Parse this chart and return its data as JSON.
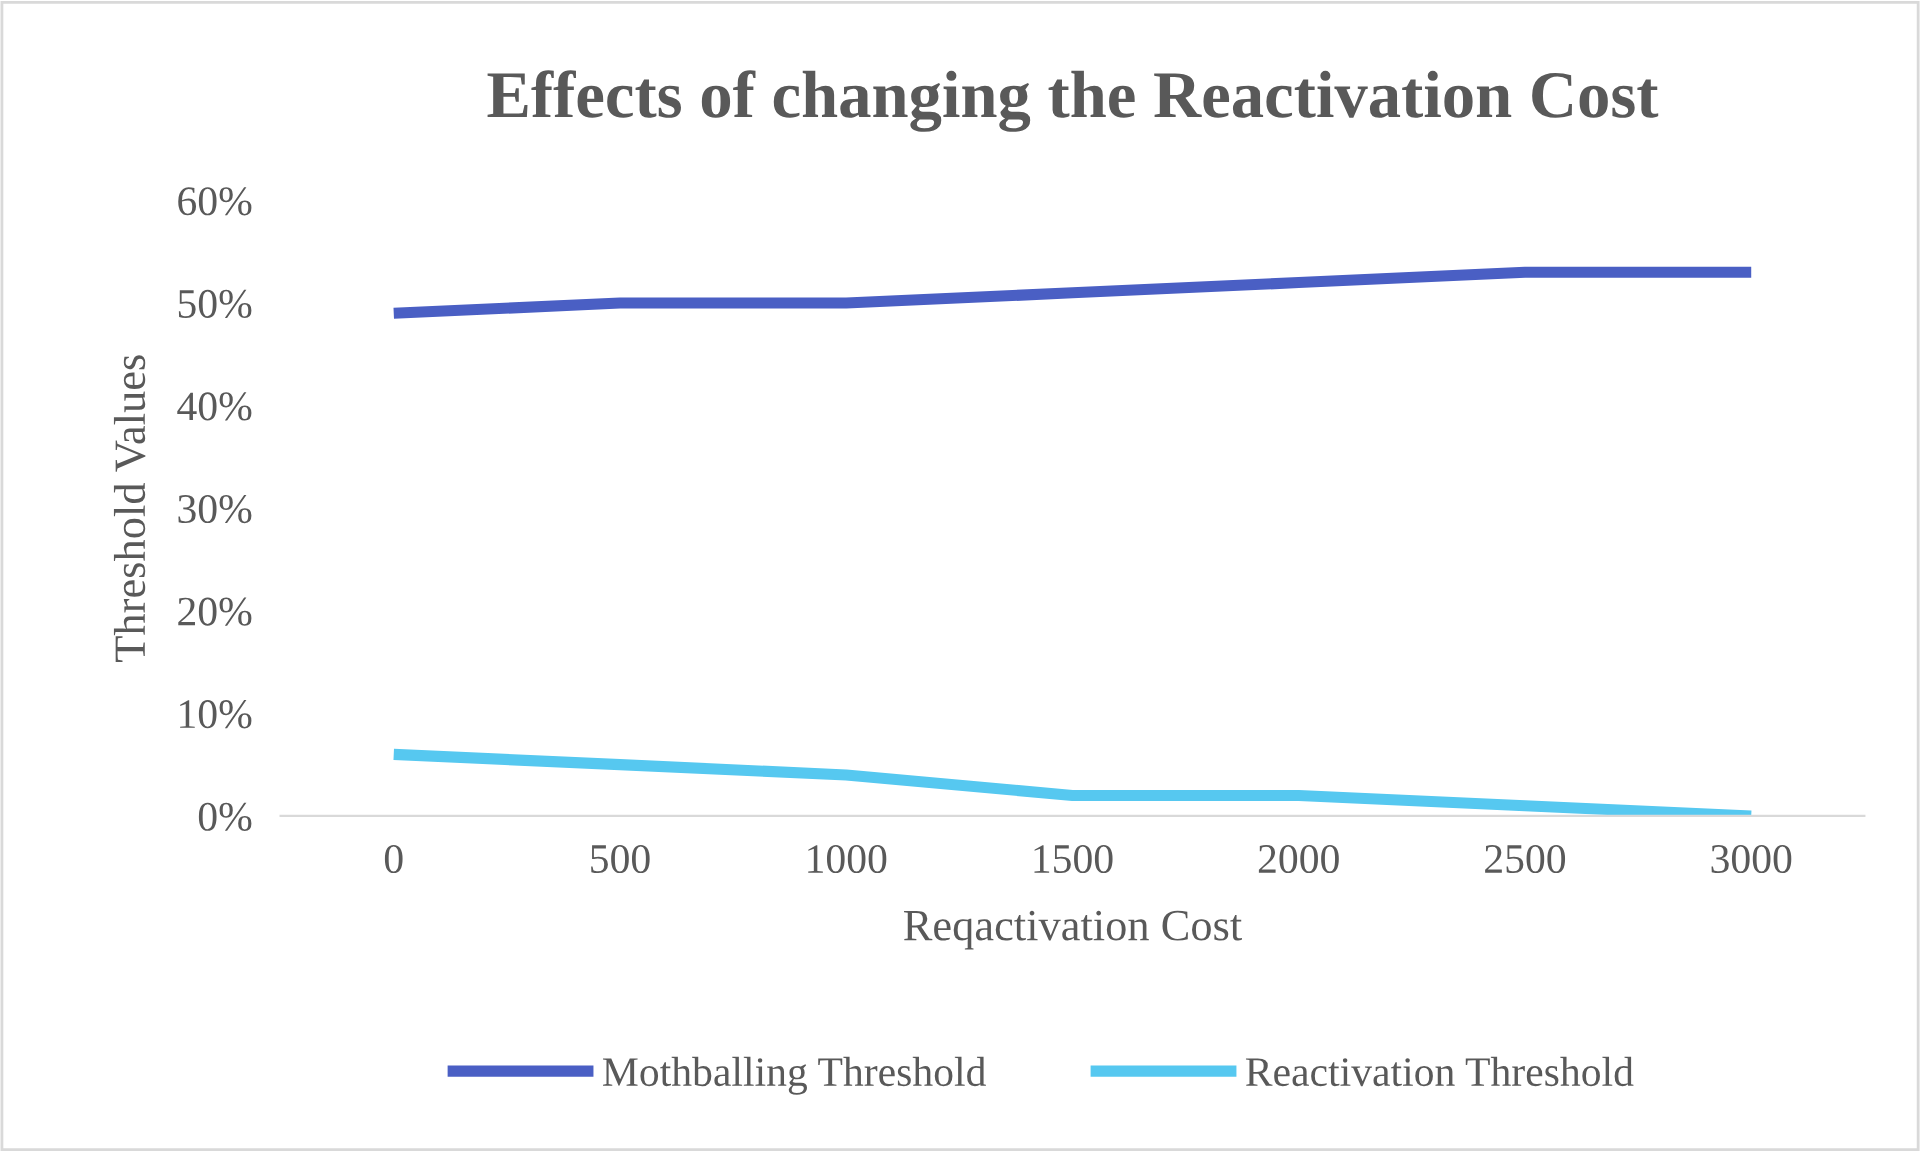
{
  "chart_data": {
    "type": "line",
    "title": "Effects of changing the Reactivation Cost",
    "xlabel": "Reqactivation Cost",
    "ylabel": "Threshold Values",
    "categories": [
      "0",
      "500",
      "1000",
      "1500",
      "2000",
      "2500",
      "3000"
    ],
    "series": [
      {
        "name": "Mothballing Threshold",
        "color": "#4a5fc4",
        "values": [
          49,
          50,
          50,
          51,
          52,
          53,
          53
        ]
      },
      {
        "name": "Reactivation Threshold",
        "color": "#56c8f0",
        "values": [
          6,
          5,
          4,
          2,
          2,
          1,
          0
        ]
      }
    ],
    "ylim": [
      0,
      60
    ],
    "yticks": [
      {
        "value": 0,
        "label": "0%"
      },
      {
        "value": 10,
        "label": "10%"
      },
      {
        "value": 20,
        "label": "20%"
      },
      {
        "value": 30,
        "label": "30%"
      },
      {
        "value": 40,
        "label": "40%"
      },
      {
        "value": 50,
        "label": "50%"
      },
      {
        "value": 60,
        "label": "60%"
      }
    ],
    "grid": false,
    "legend": "bottom",
    "marker": "none",
    "line_style": "solid"
  }
}
